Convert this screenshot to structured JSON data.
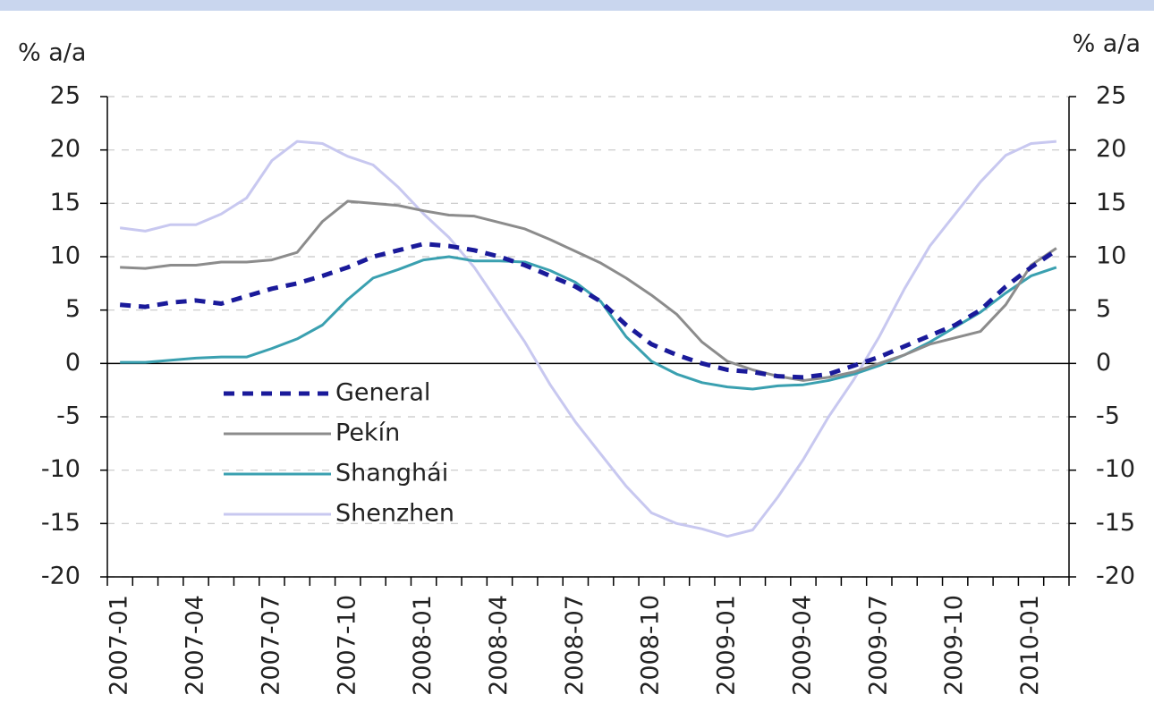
{
  "chart_data": {
    "type": "line",
    "y_label": "% a/a",
    "y2_label": "% a/a",
    "categories": [
      "2007-01",
      null,
      null,
      "2007-04",
      null,
      null,
      "2007-07",
      null,
      null,
      "2007-10",
      null,
      null,
      "2008-01",
      null,
      null,
      "2008-04",
      null,
      null,
      "2008-07",
      null,
      null,
      "2008-10",
      null,
      null,
      "2009-01",
      null,
      null,
      "2009-04",
      null,
      null,
      "2009-07",
      null,
      null,
      "2009-10",
      null,
      null,
      "2010-01",
      null
    ],
    "series": [
      {
        "name": "General",
        "color": "#1a1a9a",
        "dashed": true,
        "values": [
          5.5,
          5.3,
          5.7,
          5.9,
          5.6,
          6.3,
          7.0,
          7.5,
          8.2,
          9.0,
          10.0,
          10.6,
          11.2,
          11.0,
          10.6,
          10.0,
          9.2,
          8.2,
          7.2,
          5.8,
          3.6,
          1.8,
          0.8,
          0,
          -0.6,
          -0.8,
          -1.2,
          -1.3,
          -1.0,
          -0.2,
          0.6,
          1.6,
          2.6,
          3.6,
          5.0,
          7.2,
          9.0,
          10.6
        ]
      },
      {
        "name": "Pekín",
        "color": "#8c8c8c",
        "values": [
          9.0,
          8.9,
          9.2,
          9.2,
          9.5,
          9.5,
          9.7,
          10.4,
          13.3,
          15.2,
          15.0,
          14.8,
          14.3,
          13.9,
          13.8,
          13.2,
          12.6,
          11.6,
          10.5,
          9.4,
          8.0,
          6.4,
          4.6,
          2.0,
          0.2,
          -0.6,
          -1.2,
          -1.6,
          -1.3,
          -0.8,
          0,
          0.8,
          1.8,
          2.4,
          3.0,
          5.5,
          9.2,
          10.8
        ]
      },
      {
        "name": "Shanghái",
        "color": "#3aa0b0",
        "values": [
          0.1,
          0.1,
          0.3,
          0.5,
          0.6,
          0.6,
          1.4,
          2.3,
          3.6,
          6.0,
          8.0,
          8.8,
          9.7,
          10.0,
          9.6,
          9.6,
          9.5,
          8.7,
          7.6,
          5.8,
          2.5,
          0.2,
          -1.0,
          -1.8,
          -2.2,
          -2.4,
          -2.1,
          -2.0,
          -1.6,
          -1.0,
          -0.2,
          0.8,
          2.0,
          3.4,
          4.8,
          6.6,
          8.2,
          9.0
        ]
      },
      {
        "name": "Shenzhen",
        "color": "#c8c8f0",
        "values": [
          12.7,
          12.4,
          13.0,
          13.0,
          14.0,
          15.5,
          19.0,
          20.8,
          20.6,
          19.4,
          18.6,
          16.5,
          14.0,
          11.8,
          9.0,
          5.5,
          2.0,
          -2.0,
          -5.5,
          -8.5,
          -11.5,
          -14.0,
          -15.0,
          -15.5,
          -16.2,
          -15.6,
          -12.5,
          -9.0,
          -5.0,
          -1.5,
          2.5,
          7.0,
          11.0,
          14.0,
          17.0,
          19.5,
          20.6,
          20.8
        ]
      }
    ],
    "ylim": [
      -20,
      25
    ],
    "yticks": [
      -20,
      -15,
      -10,
      -5,
      0,
      5,
      10,
      15,
      20,
      25
    ],
    "y2lim": [
      -20,
      25
    ],
    "y2ticks": [
      -20,
      -15,
      -10,
      -5,
      0,
      5,
      10,
      15,
      20,
      25
    ],
    "grid": true,
    "legend": "lower-left"
  }
}
